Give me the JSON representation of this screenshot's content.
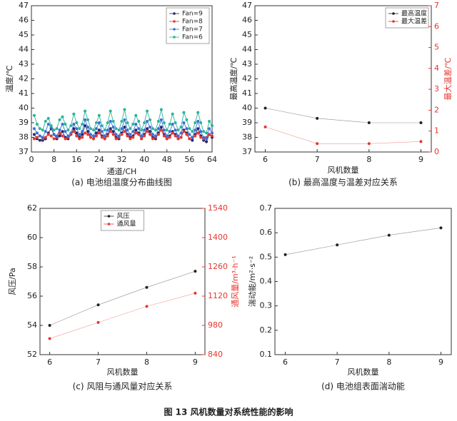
{
  "chart_data": [
    {
      "type": "line",
      "caption": "(a) 电池组温度分布曲线图",
      "x_label": "通道/CH",
      "y_label": "温度/℃",
      "x": [
        1,
        2,
        3,
        4,
        5,
        6,
        7,
        8,
        9,
        10,
        11,
        12,
        13,
        14,
        15,
        16,
        17,
        18,
        19,
        20,
        21,
        22,
        23,
        24,
        25,
        26,
        27,
        28,
        29,
        30,
        31,
        32,
        33,
        34,
        35,
        36,
        37,
        38,
        39,
        40,
        41,
        42,
        43,
        44,
        45,
        46,
        47,
        48,
        49,
        50,
        51,
        52,
        53,
        54,
        55,
        56,
        57,
        58,
        59,
        60,
        61,
        62,
        63,
        64
      ],
      "xlim": [
        0,
        64
      ],
      "xticks": [
        0,
        8,
        16,
        24,
        32,
        40,
        48,
        56,
        64
      ],
      "ylim": [
        37,
        47
      ],
      "yticks": [
        37,
        38,
        39,
        40,
        41,
        42,
        43,
        44,
        45,
        46,
        47
      ],
      "legend": "upper right",
      "series": [
        {
          "name": "Fan=9",
          "color": "#1f2a6b",
          "values": [
            38.2,
            37.9,
            37.8,
            37.8,
            37.9,
            38.3,
            38.6,
            38.2,
            37.9,
            38.1,
            38.4,
            38.0,
            37.9,
            38.2,
            38.6,
            38.3,
            38.0,
            38.2,
            38.8,
            38.4,
            38.0,
            37.9,
            38.3,
            38.5,
            38.1,
            37.9,
            38.2,
            38.6,
            38.4,
            38.0,
            37.9,
            38.3,
            38.7,
            38.2,
            38.0,
            38.1,
            38.5,
            38.3,
            37.9,
            38.2,
            38.6,
            38.4,
            38.0,
            37.9,
            38.3,
            38.7,
            38.2,
            37.9,
            38.1,
            38.4,
            38.2,
            37.9,
            38.0,
            38.5,
            38.3,
            37.9,
            37.8,
            38.2,
            38.6,
            38.1,
            37.8,
            37.7,
            38.2,
            38.0
          ]
        },
        {
          "name": "Fan=8",
          "color": "#e8352e",
          "values": [
            37.9,
            38.0,
            38.1,
            37.9,
            38.0,
            38.2,
            38.1,
            37.9,
            38.0,
            38.3,
            38.1,
            37.9,
            38.0,
            38.2,
            38.4,
            38.1,
            37.9,
            38.0,
            38.3,
            38.2,
            38.0,
            37.9,
            38.1,
            38.3,
            38.0,
            37.9,
            38.1,
            38.4,
            38.2,
            37.9,
            38.0,
            38.2,
            38.4,
            38.1,
            37.9,
            38.0,
            38.3,
            38.2,
            37.9,
            38.1,
            38.4,
            38.2,
            37.9,
            38.0,
            38.2,
            38.5,
            38.1,
            37.9,
            38.0,
            38.3,
            38.1,
            37.9,
            38.0,
            38.4,
            38.2,
            37.9,
            38.0,
            38.1,
            38.3,
            38.0,
            37.9,
            38.0,
            38.2,
            38.1
          ]
        },
        {
          "name": "Fan=7",
          "color": "#3b6fd6",
          "values": [
            38.6,
            38.3,
            38.1,
            38.0,
            38.4,
            38.9,
            38.7,
            38.2,
            38.1,
            38.5,
            38.9,
            38.4,
            38.1,
            38.3,
            38.9,
            38.6,
            38.2,
            38.4,
            39.2,
            38.7,
            38.2,
            38.1,
            38.6,
            39.0,
            38.4,
            38.1,
            38.5,
            39.1,
            38.7,
            38.2,
            38.1,
            38.6,
            39.2,
            38.5,
            38.2,
            38.4,
            38.9,
            38.6,
            38.1,
            38.5,
            39.1,
            38.7,
            38.2,
            38.1,
            38.6,
            39.2,
            38.5,
            38.1,
            38.4,
            38.9,
            38.5,
            38.1,
            38.3,
            39.0,
            38.6,
            38.2,
            38.0,
            38.5,
            39.1,
            38.4,
            38.0,
            37.9,
            38.6,
            38.3
          ]
        },
        {
          "name": "Fan=6",
          "color": "#2ab39a",
          "values": [
            39.5,
            38.9,
            38.6,
            38.5,
            39.1,
            39.3,
            38.8,
            38.5,
            38.6,
            39.2,
            39.4,
            38.9,
            38.5,
            38.8,
            39.6,
            39.0,
            38.6,
            38.9,
            39.8,
            39.2,
            38.6,
            38.5,
            39.0,
            39.5,
            38.8,
            38.5,
            39.0,
            39.8,
            39.1,
            38.6,
            38.5,
            39.1,
            39.9,
            39.0,
            38.6,
            38.9,
            39.5,
            39.1,
            38.5,
            39.0,
            39.8,
            39.2,
            38.6,
            38.5,
            39.1,
            39.9,
            39.0,
            38.5,
            38.9,
            39.6,
            39.0,
            38.5,
            38.7,
            39.7,
            39.2,
            38.6,
            38.4,
            39.0,
            39.7,
            39.0,
            38.4,
            38.3,
            39.1,
            38.8
          ]
        }
      ]
    },
    {
      "type": "line",
      "caption": "(b) 最高温度与温差对应关系",
      "x_label": "风机数量",
      "y_label": "最高温度/℃",
      "y2_label": "最大温差/℃",
      "x": [
        6,
        7,
        8,
        9
      ],
      "xlim": [
        5.8,
        9.2
      ],
      "xticks": [
        6,
        7,
        8,
        9
      ],
      "ylim": [
        37,
        47
      ],
      "yticks": [
        37,
        38,
        39,
        40,
        41,
        42,
        43,
        44,
        45,
        46,
        47
      ],
      "y2lim": [
        0,
        7
      ],
      "y2ticks": [
        0,
        1,
        2,
        3,
        4,
        5,
        6,
        7
      ],
      "legend": "upper right",
      "series": [
        {
          "name": "最高温度",
          "color": "#222222",
          "values": [
            40.0,
            39.3,
            39.0,
            39.0
          ]
        },
        {
          "name": "最大温差",
          "color": "#e8352e",
          "axis": "y2",
          "values": [
            1.2,
            0.4,
            0.4,
            0.5
          ]
        }
      ]
    },
    {
      "type": "line",
      "caption": "(c) 风阻与通风量对应关系",
      "x_label": "风机数量",
      "y_label": "风压/Pa",
      "y2_label": "通风量/m³·h⁻¹",
      "x": [
        6,
        7,
        8,
        9
      ],
      "xlim": [
        5.8,
        9.2
      ],
      "xticks": [
        6,
        7,
        8,
        9
      ],
      "ylim": [
        52,
        62
      ],
      "yticks": [
        52,
        54,
        56,
        58,
        60,
        62
      ],
      "y2lim": [
        840,
        1540
      ],
      "y2ticks": [
        840,
        980,
        1120,
        1260,
        1400,
        1540
      ],
      "legend": "upper center",
      "series": [
        {
          "name": "风压",
          "color": "#222222",
          "values": [
            54.0,
            55.4,
            56.6,
            57.7
          ]
        },
        {
          "name": "通风量",
          "color": "#e8352e",
          "axis": "y2",
          "values": [
            917,
            994,
            1071,
            1134
          ]
        }
      ]
    },
    {
      "type": "line",
      "caption": "(d) 电池组表面湍动能",
      "x_label": "风机数量",
      "y_label": "湍动能/m²·s⁻²",
      "x": [
        6,
        7,
        8,
        9
      ],
      "xlim": [
        5.8,
        9.2
      ],
      "xticks": [
        6,
        7,
        8,
        9
      ],
      "ylim": [
        0.1,
        0.7
      ],
      "yticks": [
        0.1,
        0.2,
        0.3,
        0.4,
        0.5,
        0.6,
        0.7
      ],
      "series": [
        {
          "color": "#222222",
          "values": [
            0.51,
            0.55,
            0.59,
            0.62
          ]
        }
      ]
    }
  ],
  "figure_caption": "图 13 风机数量对系统性能的影响"
}
